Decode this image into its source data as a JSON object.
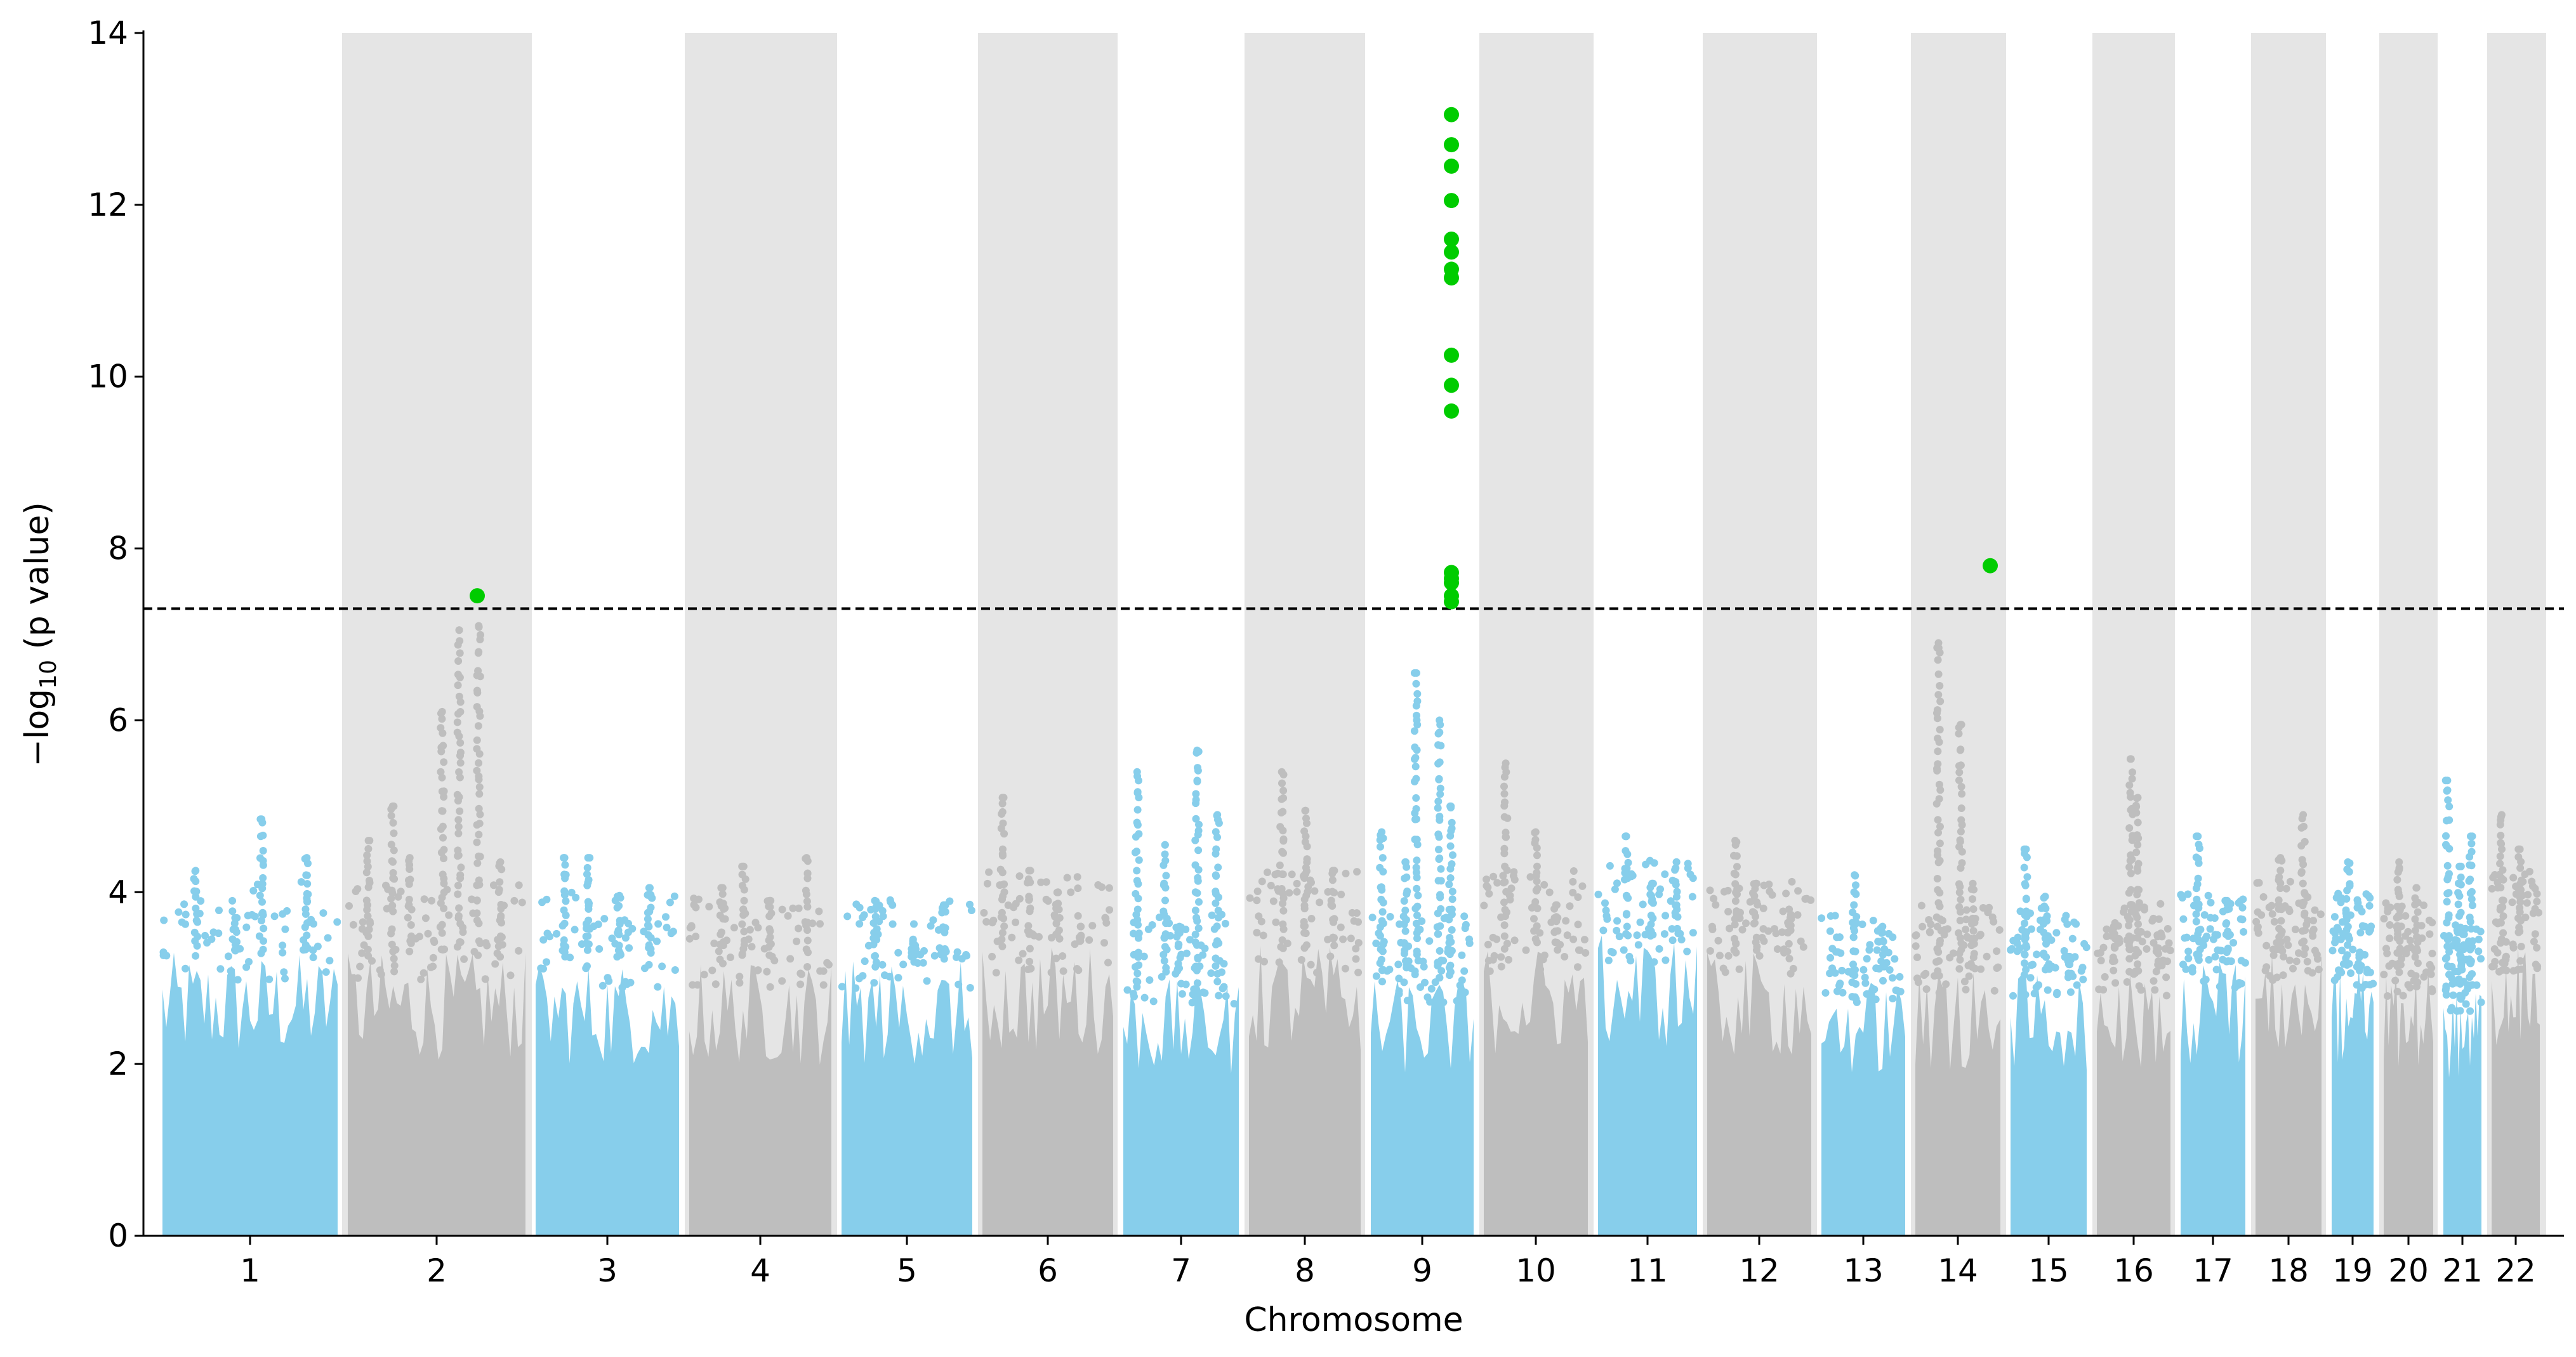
{
  "chart_data": {
    "type": "scatter",
    "subtype": "manhattan",
    "title": "",
    "xlabel": "Chromosome",
    "ylabel_parts": {
      "prefix": "−log",
      "subscript": "10",
      "suffix": " (p value)"
    },
    "ylim": [
      0,
      14
    ],
    "yticks": [
      0,
      2,
      4,
      6,
      8,
      10,
      12,
      14
    ],
    "threshold": 7.3,
    "threshold_style": "dashed",
    "colors": {
      "odd_chromosome": "#87CEEB",
      "even_chromosome": "#BEBEBE",
      "significant": "#00CC00",
      "even_band": "#E5E5E5",
      "threshold_line": "#000000",
      "axis": "#000000"
    },
    "chromosomes": [
      {
        "label": "1",
        "baseline_max": 3.3,
        "peaks": [
          4.25,
          3.7,
          4.85,
          4.4
        ]
      },
      {
        "label": "2",
        "baseline_max": 3.3,
        "peaks": [
          4.6,
          5.0,
          4.4,
          6.1,
          7.05,
          7.1,
          4.35
        ]
      },
      {
        "label": "3",
        "baseline_max": 3.2,
        "peaks": [
          4.4,
          4.4,
          3.95,
          4.05
        ]
      },
      {
        "label": "4",
        "baseline_max": 3.2,
        "peaks": [
          4.05,
          4.3,
          3.9,
          4.4
        ]
      },
      {
        "label": "5",
        "baseline_max": 3.2,
        "peaks": [
          3.9,
          3.45,
          3.85
        ]
      },
      {
        "label": "6",
        "baseline_max": 3.4,
        "peaks": [
          5.1,
          4.25,
          4.0,
          3.6
        ]
      },
      {
        "label": "7",
        "baseline_max": 3.0,
        "peaks": [
          5.4,
          4.55,
          3.6,
          5.65,
          4.9
        ]
      },
      {
        "label": "8",
        "baseline_max": 3.4,
        "peaks": [
          5.4,
          4.95,
          4.25
        ]
      },
      {
        "label": "9",
        "baseline_max": 3.0,
        "peaks": [
          4.7,
          4.35,
          6.55,
          6.0,
          5.0
        ]
      },
      {
        "label": "10",
        "baseline_max": 3.4,
        "peaks": [
          5.5,
          4.7,
          3.85
        ]
      },
      {
        "label": "11",
        "baseline_max": 3.5,
        "peaks": [
          4.65,
          4.1,
          4.35
        ]
      },
      {
        "label": "12",
        "baseline_max": 3.3,
        "peaks": [
          4.6,
          4.1,
          3.8
        ]
      },
      {
        "label": "13",
        "baseline_max": 3.0,
        "peaks": [
          4.2,
          3.6
        ]
      },
      {
        "label": "14",
        "baseline_max": 3.1,
        "peaks": [
          6.9,
          5.95,
          4.1
        ]
      },
      {
        "label": "15",
        "baseline_max": 3.1,
        "peaks": [
          4.5,
          3.95,
          3.25
        ]
      },
      {
        "label": "16",
        "baseline_max": 3.1,
        "peaks": [
          3.6,
          5.55,
          5.1,
          3.5
        ]
      },
      {
        "label": "17",
        "baseline_max": 3.2,
        "peaks": [
          4.65,
          3.9
        ]
      },
      {
        "label": "18",
        "baseline_max": 3.3,
        "peaks": [
          4.4,
          4.9
        ]
      },
      {
        "label": "19",
        "baseline_max": 3.2,
        "peaks": [
          4.35,
          3.3
        ]
      },
      {
        "label": "20",
        "baseline_max": 3.1,
        "peaks": [
          4.35,
          4.05
        ]
      },
      {
        "label": "21",
        "baseline_max": 2.9,
        "peaks": [
          5.3,
          4.3,
          4.65
        ]
      },
      {
        "label": "22",
        "baseline_max": 3.4,
        "peaks": [
          4.9,
          4.5
        ]
      }
    ],
    "significant_points": [
      {
        "chromosome": "2",
        "values": [
          7.45
        ]
      },
      {
        "chromosome": "9",
        "values": [
          13.05,
          12.7,
          12.45,
          12.05,
          11.6,
          11.45,
          11.25,
          11.15,
          10.25,
          9.9,
          9.6,
          7.72,
          7.65,
          7.6,
          7.45,
          7.38
        ]
      },
      {
        "chromosome": "14",
        "values": [
          7.8
        ]
      }
    ]
  }
}
